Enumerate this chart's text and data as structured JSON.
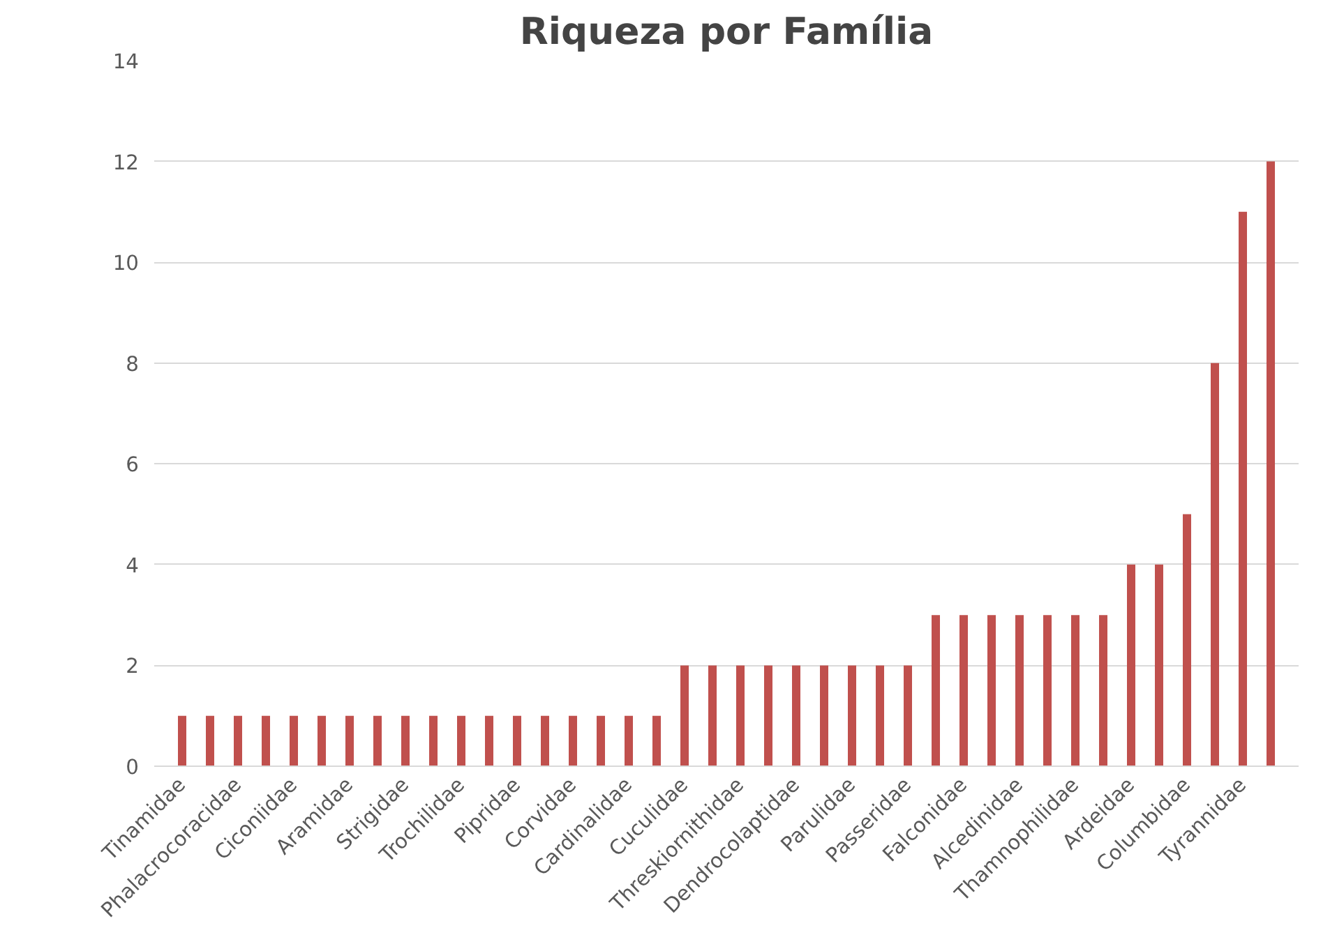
{
  "chart_data": {
    "type": "bar",
    "title": "Riqueza por Família",
    "categories": [
      "Tinamidae",
      null,
      "Phalacrocoracidae",
      null,
      "Ciconiidae",
      null,
      "Aramidae",
      null,
      "Strigidae",
      null,
      "Trochilidae",
      null,
      "Pipridae",
      null,
      "Corvidae",
      null,
      "Cardinalidae",
      null,
      "Cuculidae",
      null,
      "Threskiornithidae",
      null,
      "Dendrocolaptidae",
      null,
      "Parulidae",
      null,
      "Passeridae",
      null,
      "Falconidae",
      null,
      "Alcedinidae",
      null,
      "Thamnophilidae",
      null,
      "Ardeidae",
      null,
      "Columbidae",
      null,
      "Tyrannidae",
      null
    ],
    "values": [
      1,
      1,
      1,
      1,
      1,
      1,
      1,
      1,
      1,
      1,
      1,
      1,
      1,
      1,
      1,
      1,
      1,
      1,
      2,
      2,
      2,
      2,
      2,
      2,
      2,
      2,
      2,
      3,
      3,
      3,
      3,
      3,
      3,
      3,
      4,
      4,
      5,
      8,
      11,
      12
    ],
    "color": "#c0504d",
    "ylim": [
      0,
      14
    ],
    "yticks": [
      0,
      2,
      4,
      6,
      8,
      10,
      12,
      14
    ],
    "grid": "y"
  }
}
